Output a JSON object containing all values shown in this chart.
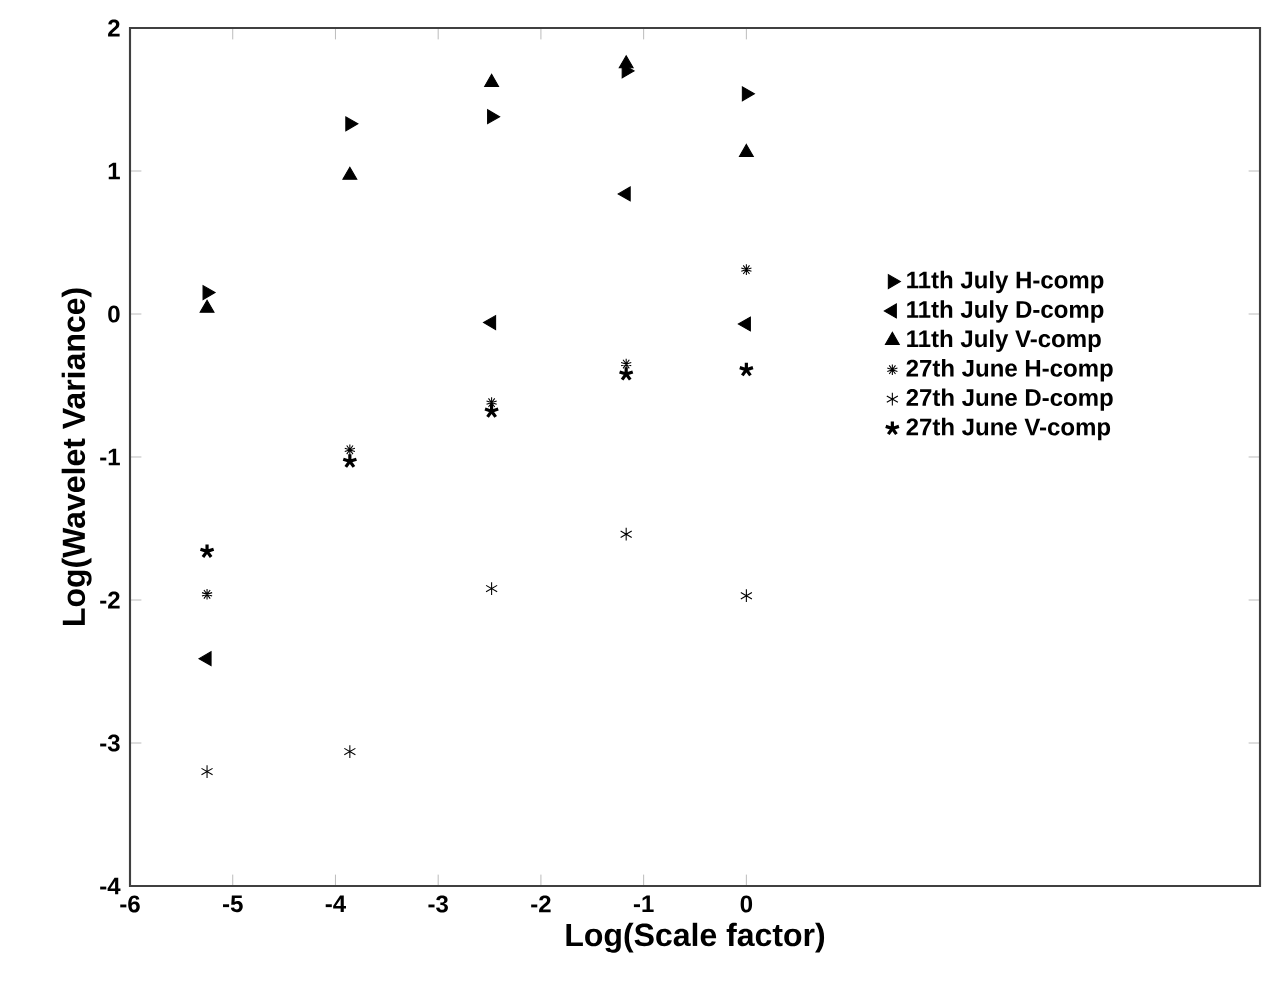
{
  "chart_data": {
    "type": "scatter",
    "xlabel": "Log(Scale factor)",
    "ylabel": "Log(Wavelet Variance)",
    "xlim": [
      -6,
      5
    ],
    "ylim": [
      -4,
      2
    ],
    "xticks": [
      -6,
      -5,
      -4,
      -3,
      -2,
      -1,
      0
    ],
    "yticks": [
      -4,
      -3,
      -2,
      -1,
      0,
      1,
      2
    ],
    "grid": false,
    "legend": "right",
    "x": [
      -5.25,
      -3.86,
      -2.48,
      -1.17,
      0
    ],
    "series": [
      {
        "name": "11th July H-comp",
        "color": "#000000",
        "marker": "triangle-right",
        "values": [
          0.15,
          1.33,
          1.38,
          1.7,
          1.54
        ]
      },
      {
        "name": "11th July D-comp",
        "color": "#000000",
        "marker": "triangle-left",
        "values": [
          -2.41,
          null,
          -0.06,
          0.84,
          -0.07
        ]
      },
      {
        "name": "11th July V-comp",
        "color": "#000000",
        "marker": "triangle",
        "values": [
          0.04,
          0.97,
          1.62,
          1.75,
          1.13
        ]
      },
      {
        "name": "27th June H-comp",
        "color": "#000000",
        "values": [
          -1.96,
          -0.95,
          -0.62,
          -0.35,
          0.31
        ]
      },
      {
        "name": "27th June D-comp",
        "color": "#000000",
        "values": [
          -3.2,
          -3.06,
          -1.92,
          -1.54,
          -1.97
        ]
      },
      {
        "name": "27th June V-comp",
        "color": "#000000",
        "values": [
          -1.66,
          -1.03,
          -0.68,
          -0.42,
          -0.39
        ]
      }
    ]
  }
}
